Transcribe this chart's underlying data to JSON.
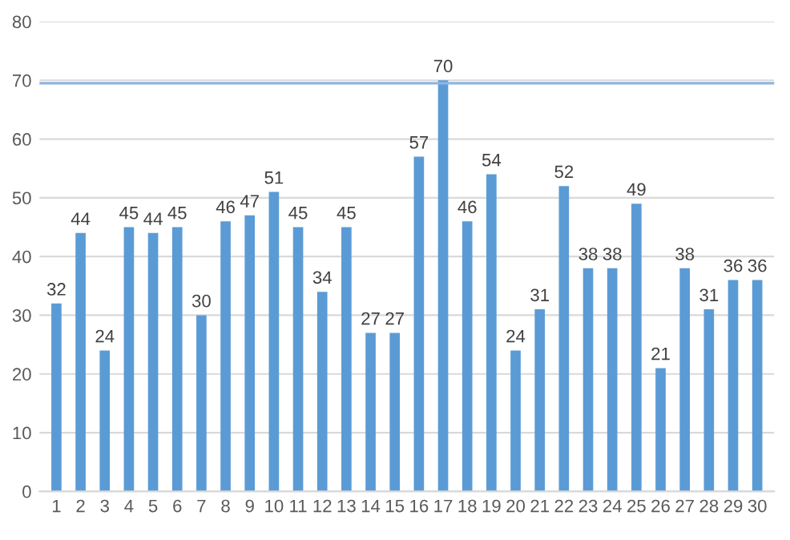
{
  "chart_data": {
    "type": "bar",
    "categories": [
      "1",
      "2",
      "3",
      "4",
      "5",
      "6",
      "7",
      "8",
      "9",
      "10",
      "11",
      "12",
      "13",
      "14",
      "15",
      "16",
      "17",
      "18",
      "19",
      "20",
      "21",
      "22",
      "23",
      "24",
      "25",
      "26",
      "27",
      "28",
      "29",
      "30"
    ],
    "values": [
      32,
      44,
      24,
      45,
      44,
      45,
      30,
      46,
      47,
      51,
      45,
      34,
      45,
      27,
      27,
      57,
      70,
      46,
      54,
      24,
      31,
      52,
      38,
      38,
      49,
      21,
      38,
      31,
      36,
      36
    ],
    "color": "#5b9bd5",
    "ylim": [
      0,
      80
    ],
    "yticks": [
      0,
      10,
      20,
      30,
      40,
      50,
      60,
      70,
      80
    ],
    "grid": "y",
    "data_labels": true,
    "ref_lines": [
      {
        "axis": "y",
        "value": 69.5,
        "color": "#8eb4e3",
        "line_style": "solid"
      }
    ]
  }
}
